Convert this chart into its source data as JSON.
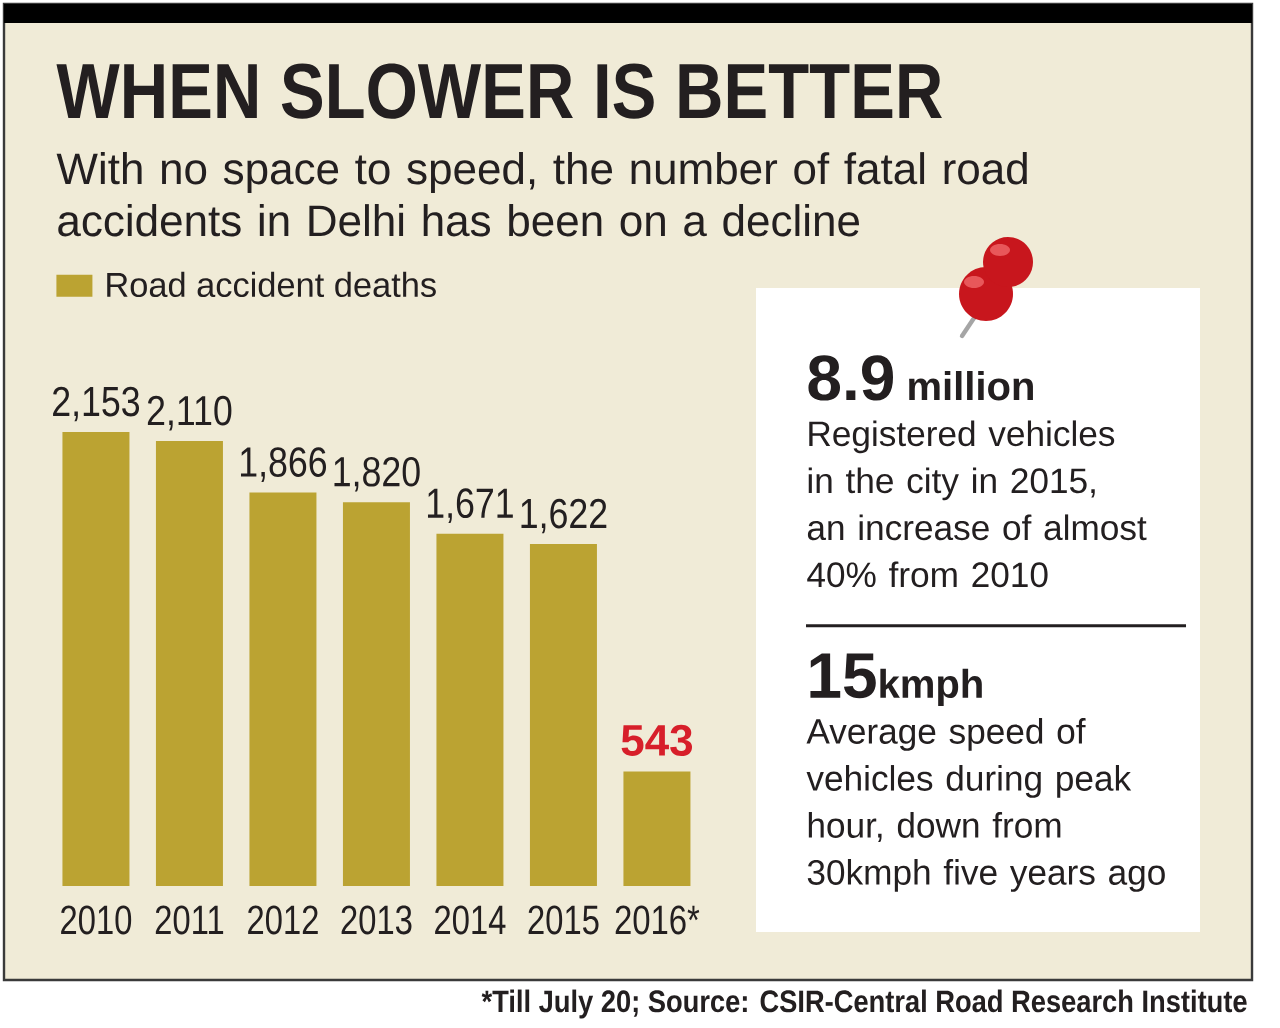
{
  "chart_data": [
    {
      "type": "bar",
      "title": "WHEN SLOWER IS BETTER",
      "subtitle": "With no space to speed, the number of fatal road accidents in Delhi has been on a decline",
      "categories": [
        "2010",
        "2011",
        "2012",
        "2013",
        "2014",
        "2015",
        "2016*"
      ],
      "series": [
        {
          "name": "Road accident deaths",
          "color": "#bba332",
          "values": [
            2153,
            2110,
            1866,
            1820,
            1671,
            1622,
            543
          ],
          "value_labels": [
            "2,153",
            "2,110",
            "1,866",
            "1,820",
            "1,671",
            "1,622",
            "543"
          ]
        }
      ],
      "legend": "top left",
      "tick_labels": "x",
      "annotations": [
        "*Till July 20; Source: CSIR-Central Road Research Institute"
      ]
    },
    {
      "type": "other",
      "annotations": [
        "8.9 million",
        "Registered vehicles in the city in 2015, an increase of almost 40% from 2010",
        "15kmph",
        "Average speed of vehicles during peak hour, down from 30kmph five years ago"
      ]
    }
  ]
}
